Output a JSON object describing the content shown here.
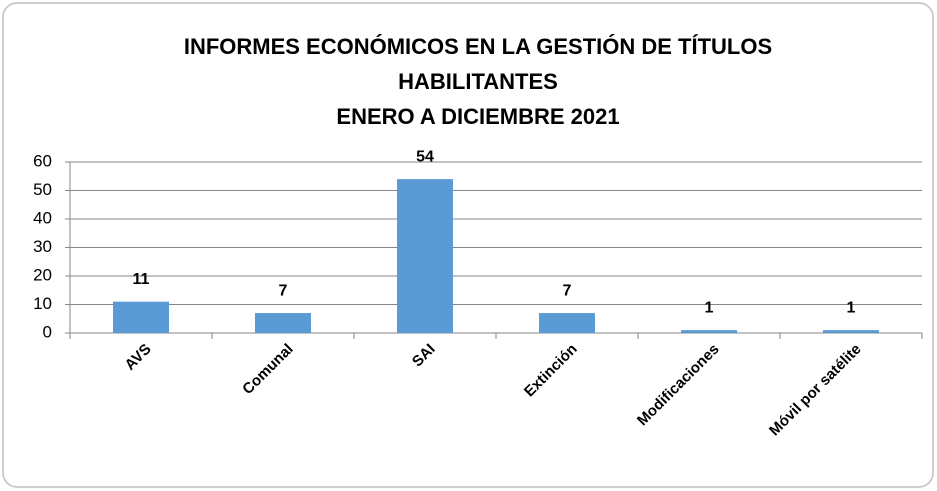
{
  "chart_data": {
    "type": "bar",
    "title": [
      "INFORMES ECONÓMICOS EN LA GESTIÓN DE TÍTULOS",
      "HABILITANTES",
      "ENERO A DICIEMBRE 2021"
    ],
    "categories": [
      "AVS",
      "Comunal",
      "SAI",
      "Extinción",
      "Modificaciones",
      "Móvil por satélite"
    ],
    "values": [
      11,
      7,
      54,
      7,
      1,
      1
    ],
    "color": "#5b9bd5",
    "ylim": [
      0,
      60
    ],
    "yticks": [
      0,
      10,
      20,
      30,
      40,
      50,
      60
    ],
    "grid": true
  }
}
